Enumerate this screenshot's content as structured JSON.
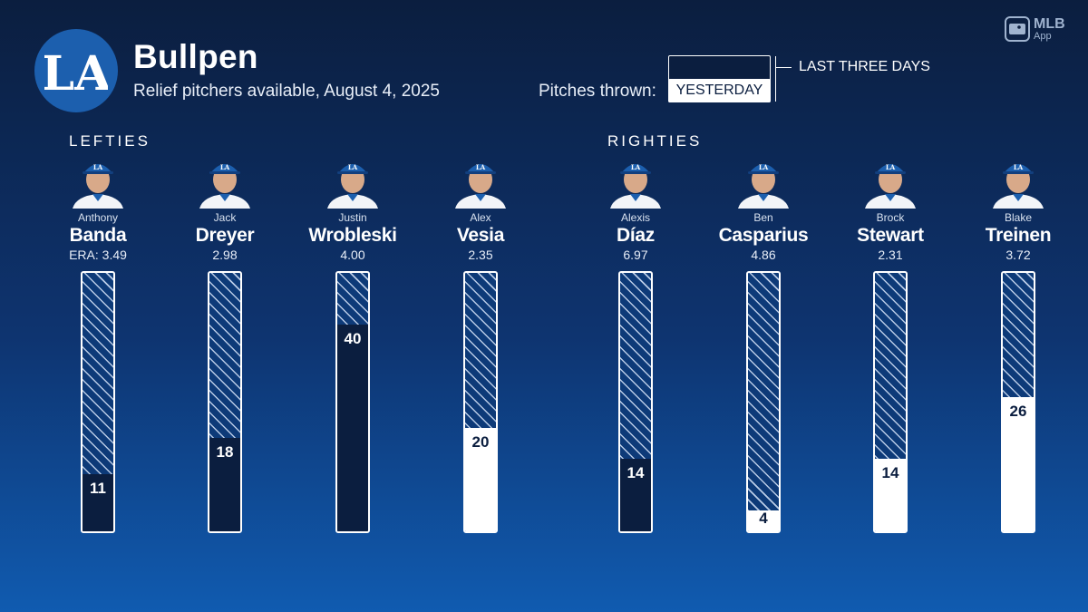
{
  "header": {
    "title": "Bullpen",
    "subtitle": "Relief pitchers available, August 4, 2025",
    "logo_text": "LA",
    "app_badge": {
      "big": "MLB",
      "small": "App"
    }
  },
  "legend": {
    "label": "Pitches thrown:",
    "yesterday": "YESTERDAY",
    "last_three_days": "LAST THREE DAYS"
  },
  "groups": {
    "lefties": "LEFTIES",
    "righties": "RIGHTIES"
  },
  "colors": {
    "background_top": "#0b1e3f",
    "background_bottom": "#105bb0",
    "logo_blue": "#1c5fae",
    "last_three_days_fill": "#0b1e3f",
    "yesterday_fill": "#ffffff"
  },
  "chart_data": {
    "type": "bar",
    "scale_max_pitches": 50,
    "era_prefix": "ERA: ",
    "series": [
      {
        "name": "LAST THREE DAYS"
      },
      {
        "name": "YESTERDAY"
      }
    ],
    "players": [
      {
        "group": "lefties",
        "first": "Anthony",
        "last": "Banda",
        "era": "3.49",
        "pitches": 11,
        "yesterday": false
      },
      {
        "group": "lefties",
        "first": "Jack",
        "last": "Dreyer",
        "era": "2.98",
        "pitches": 18,
        "yesterday": false
      },
      {
        "group": "lefties",
        "first": "Justin",
        "last": "Wrobleski",
        "era": "4.00",
        "pitches": 40,
        "yesterday": false
      },
      {
        "group": "lefties",
        "first": "Alex",
        "last": "Vesia",
        "era": "2.35",
        "pitches": 20,
        "yesterday": true
      },
      {
        "group": "righties",
        "first": "Alexis",
        "last": "Díaz",
        "era": "6.97",
        "pitches": 14,
        "yesterday": false
      },
      {
        "group": "righties",
        "first": "Ben",
        "last": "Casparius",
        "era": "4.86",
        "pitches": 4,
        "yesterday": true
      },
      {
        "group": "righties",
        "first": "Brock",
        "last": "Stewart",
        "era": "2.31",
        "pitches": 14,
        "yesterday": true
      },
      {
        "group": "righties",
        "first": "Blake",
        "last": "Treinen",
        "era": "3.72",
        "pitches": 26,
        "yesterday": true
      }
    ]
  }
}
